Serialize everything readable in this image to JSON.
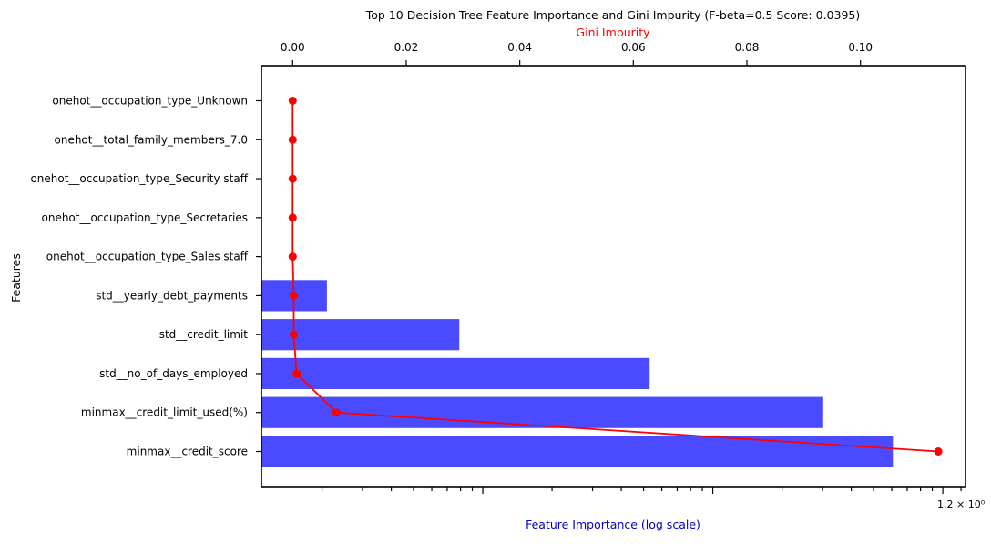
{
  "chart_data": {
    "type": "bar",
    "title": "Top 10 Decision Tree Feature Importance and Gini Impurity (F-beta=0.5 Score: 0.0395)",
    "ylabel": "Features",
    "xlabel_bottom": "Feature Importance (log scale)",
    "xlabel_top": "Gini Impurity",
    "x_bottom_scale": "log",
    "x_bottom_tick_label": "1.2 × 10⁰",
    "x_bottom_tick_value": 1.2,
    "x_top_ticks": [
      "0.00",
      "0.02",
      "0.04",
      "0.06",
      "0.08",
      "0.10"
    ],
    "x_top_tick_values": [
      0,
      0.02,
      0.04,
      0.06,
      0.08,
      0.1
    ],
    "x_top_range": [
      -0.0055,
      0.1185
    ],
    "grid": false,
    "categories": [
      "onehot__occupation_type_Unknown",
      "onehot__total_family_members_7.0",
      "onehot__occupation_type_Security staff",
      "onehot__occupation_type_Secretaries",
      "onehot__occupation_type_Sales staff",
      "std__yearly_debt_payments",
      "std__credit_limit",
      "std__no_of_days_employed",
      "minmax__credit_limit_used(%)",
      "minmax__credit_score"
    ],
    "series": [
      {
        "name": "Feature Importance",
        "kind": "bar",
        "color": "#4a4aff",
        "values": [
          0,
          0,
          0,
          0,
          0,
          0.0021,
          0.0079,
          0.0531,
          0.302,
          0.607
        ]
      },
      {
        "name": "Gini Impurity",
        "kind": "line",
        "color": "#ff0000",
        "values": [
          0,
          0,
          0,
          0,
          0,
          0.0002,
          0.0002,
          0.0007,
          0.0077,
          0.1137
        ]
      }
    ],
    "colors": {
      "title": "#000000",
      "top_label": "#ff0000",
      "bottom_label": "#0000cc"
    }
  }
}
